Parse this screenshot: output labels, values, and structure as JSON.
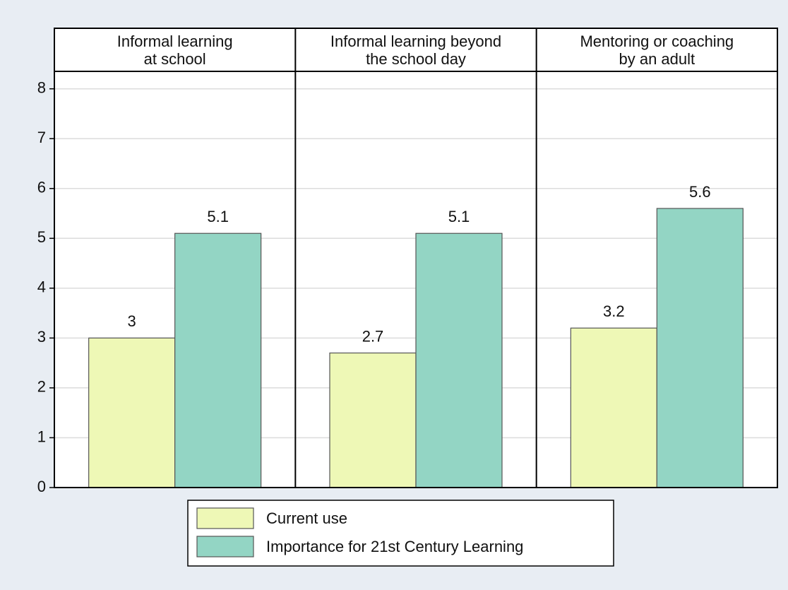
{
  "chart_data": {
    "type": "bar",
    "categories": [
      "Informal learning\nat school",
      "Informal learning beyond\nthe school day",
      "Mentoring or coaching\nby an adult"
    ],
    "series": [
      {
        "name": "Current use",
        "color": "#eef8b6",
        "values": [
          3,
          2.7,
          3.2
        ]
      },
      {
        "name": "Importance for 21st Century Learning",
        "color": "#93d5c4",
        "values": [
          5.1,
          5.1,
          5.6
        ]
      }
    ],
    "ylim": [
      0,
      8.35
    ],
    "yticks": [
      0,
      1,
      2,
      3,
      4,
      5,
      6,
      7,
      8
    ],
    "grid": true
  }
}
